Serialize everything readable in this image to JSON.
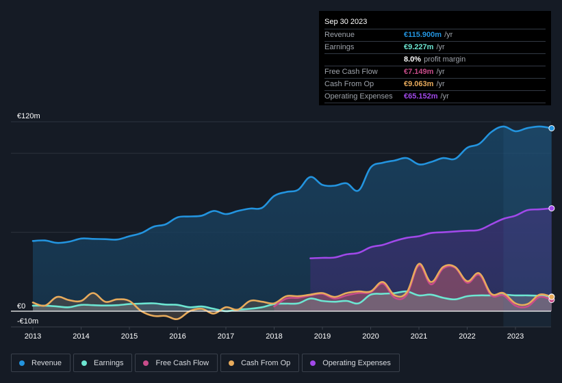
{
  "colors": {
    "background": "#151b25",
    "revenue": "#2394df",
    "earnings": "#6de6d2",
    "free_cash_flow": "#c84c8a",
    "cash_from_op": "#e8ab5c",
    "operating_expenses": "#a149ea"
  },
  "tooltip": {
    "date": "Sep 30 2023",
    "rows": [
      {
        "label": "Revenue",
        "value": "€115.900m",
        "unit": "/yr",
        "color": "#2394df"
      },
      {
        "label": "Earnings",
        "value": "€9.227m",
        "unit": "/yr",
        "color": "#6de6d2"
      },
      {
        "label": "",
        "value": "8.0%",
        "unit": "profit margin",
        "color": "#ffffff"
      },
      {
        "label": "Free Cash Flow",
        "value": "€7.149m",
        "unit": "/yr",
        "color": "#c84c8a"
      },
      {
        "label": "Cash From Op",
        "value": "€9.063m",
        "unit": "/yr",
        "color": "#e8ab5c"
      },
      {
        "label": "Operating Expenses",
        "value": "€65.152m",
        "unit": "/yr",
        "color": "#a149ea"
      }
    ]
  },
  "legend": [
    {
      "label": "Revenue",
      "color": "#2394df"
    },
    {
      "label": "Earnings",
      "color": "#6de6d2"
    },
    {
      "label": "Free Cash Flow",
      "color": "#c84c8a"
    },
    {
      "label": "Cash From Op",
      "color": "#e8ab5c"
    },
    {
      "label": "Operating Expenses",
      "color": "#a149ea"
    }
  ],
  "chart_data": {
    "type": "area",
    "title": "",
    "xlabel": "",
    "ylabel": "",
    "currency": "EUR",
    "ylim": [
      -10,
      120
    ],
    "y_tick_labels": [
      {
        "value": 120,
        "label": "€120m"
      },
      {
        "value": 0,
        "label": "€0"
      },
      {
        "value": -10,
        "label": "-€10m"
      }
    ],
    "gridlines_at": [
      120,
      100,
      50
    ],
    "x_tick_labels": [
      "2013",
      "2014",
      "2015",
      "2016",
      "2017",
      "2018",
      "2019",
      "2020",
      "2021",
      "2022",
      "2023"
    ],
    "xlim": [
      2013.0,
      2023.75
    ],
    "forecast_band_start": 2022.75,
    "legend_position": "bottom-left",
    "series": [
      {
        "name": "Revenue",
        "key": "revenue",
        "x": [
          2013.0,
          2013.25,
          2013.5,
          2013.75,
          2014.0,
          2014.25,
          2014.5,
          2014.75,
          2015.0,
          2015.25,
          2015.5,
          2015.75,
          2016.0,
          2016.25,
          2016.5,
          2016.75,
          2017.0,
          2017.25,
          2017.5,
          2017.75,
          2018.0,
          2018.25,
          2018.5,
          2018.75,
          2019.0,
          2019.25,
          2019.5,
          2019.75,
          2020.0,
          2020.25,
          2020.5,
          2020.75,
          2021.0,
          2021.25,
          2021.5,
          2021.75,
          2022.0,
          2022.25,
          2022.5,
          2022.75,
          2023.0,
          2023.25,
          2023.5,
          2023.75
        ],
        "values": [
          44.5,
          44.8,
          43.3,
          44.0,
          46.0,
          45.8,
          45.6,
          45.4,
          47.5,
          49.5,
          53.5,
          55.0,
          59.5,
          60.0,
          60.5,
          63.5,
          61.5,
          63.5,
          65.0,
          65.5,
          73.0,
          75.5,
          77.0,
          85.0,
          80.0,
          79.5,
          81.0,
          76.5,
          91.0,
          94.0,
          95.5,
          97.0,
          93.0,
          94.5,
          97.0,
          96.5,
          103.5,
          106.0,
          113.5,
          117.0,
          114.0,
          116.0,
          117.0,
          115.9
        ]
      },
      {
        "name": "Earnings",
        "key": "earnings",
        "x": [
          2013.0,
          2013.25,
          2013.5,
          2013.75,
          2014.0,
          2014.25,
          2014.5,
          2014.75,
          2015.0,
          2015.25,
          2015.5,
          2015.75,
          2016.0,
          2016.25,
          2016.5,
          2016.75,
          2017.0,
          2017.25,
          2017.5,
          2017.75,
          2018.0,
          2018.25,
          2018.5,
          2018.75,
          2019.0,
          2019.25,
          2019.5,
          2019.75,
          2020.0,
          2020.25,
          2020.5,
          2020.75,
          2021.0,
          2021.25,
          2021.5,
          2021.75,
          2022.0,
          2022.25,
          2022.5,
          2022.75,
          2023.0,
          2023.25,
          2023.5,
          2023.75
        ],
        "values": [
          3.5,
          3.5,
          3.0,
          2.5,
          4.0,
          3.8,
          3.6,
          3.8,
          4.5,
          4.8,
          5.0,
          4.2,
          4.0,
          2.5,
          3.0,
          1.5,
          0.0,
          1.0,
          1.5,
          2.5,
          4.5,
          4.8,
          5.0,
          8.0,
          6.5,
          6.0,
          6.5,
          5.0,
          10.5,
          11.0,
          11.5,
          12.5,
          10.0,
          10.5,
          8.5,
          7.5,
          9.5,
          10.0,
          10.0,
          10.5,
          10.0,
          10.0,
          9.8,
          9.227
        ]
      },
      {
        "name": "Free Cash Flow",
        "key": "free_cash_flow",
        "x": [
          2018.0,
          2018.25,
          2018.5,
          2018.75,
          2019.0,
          2019.25,
          2019.5,
          2019.75,
          2020.0,
          2020.25,
          2020.5,
          2020.75,
          2021.0,
          2021.25,
          2021.5,
          2021.75,
          2022.0,
          2022.25,
          2022.5,
          2022.75,
          2023.0,
          2023.25,
          2023.5,
          2023.75
        ],
        "values": [
          3.0,
          8.0,
          8.5,
          10.0,
          11.0,
          8.0,
          10.0,
          11.5,
          12.0,
          17.5,
          8.5,
          10.5,
          29.0,
          17.0,
          27.0,
          27.5,
          18.0,
          23.0,
          10.0,
          10.0,
          3.5,
          3.0,
          9.0,
          7.149
        ]
      },
      {
        "name": "Cash From Op",
        "key": "cash_from_op",
        "x": [
          2013.0,
          2013.25,
          2013.5,
          2013.75,
          2014.0,
          2014.25,
          2014.5,
          2014.75,
          2015.0,
          2015.25,
          2015.5,
          2015.75,
          2016.0,
          2016.25,
          2016.5,
          2016.75,
          2017.0,
          2017.25,
          2017.5,
          2017.75,
          2018.0,
          2018.25,
          2018.5,
          2018.75,
          2019.0,
          2019.25,
          2019.5,
          2019.75,
          2020.0,
          2020.25,
          2020.5,
          2020.75,
          2021.0,
          2021.25,
          2021.5,
          2021.75,
          2022.0,
          2022.25,
          2022.5,
          2022.75,
          2023.0,
          2023.25,
          2023.5,
          2023.75
        ],
        "values": [
          5.5,
          3.5,
          9.0,
          7.0,
          6.5,
          11.5,
          6.0,
          7.5,
          6.5,
          0.0,
          -3.0,
          -3.0,
          -5.0,
          0.0,
          1.5,
          -1.5,
          2.5,
          1.0,
          6.5,
          6.0,
          5.0,
          9.5,
          9.5,
          10.5,
          11.5,
          9.0,
          11.5,
          12.5,
          12.5,
          18.5,
          10.0,
          12.0,
          30.0,
          18.5,
          28.0,
          28.0,
          19.0,
          24.0,
          11.0,
          11.5,
          5.0,
          4.5,
          10.5,
          9.063
        ]
      },
      {
        "name": "Operating Expenses",
        "key": "operating_expenses",
        "x": [
          2018.75,
          2019.0,
          2019.25,
          2019.5,
          2019.75,
          2020.0,
          2020.25,
          2020.5,
          2020.75,
          2021.0,
          2021.25,
          2021.5,
          2021.75,
          2022.0,
          2022.25,
          2022.5,
          2022.75,
          2023.0,
          2023.25,
          2023.5,
          2023.75
        ],
        "values": [
          33.5,
          33.8,
          34.0,
          36.0,
          37.0,
          40.5,
          42.0,
          44.5,
          46.5,
          47.5,
          49.5,
          50.0,
          50.5,
          51.0,
          51.5,
          55.0,
          58.5,
          60.5,
          64.0,
          64.5,
          65.152
        ]
      }
    ]
  }
}
